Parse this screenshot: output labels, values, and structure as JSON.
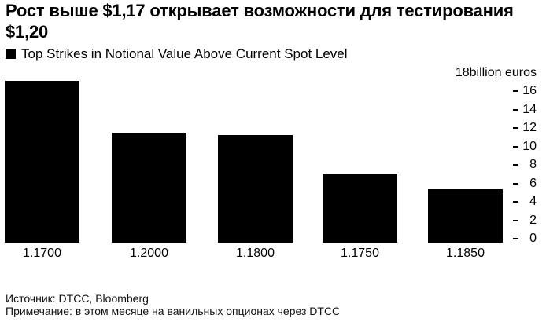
{
  "chart_data": {
    "type": "bar",
    "title": "Рост выше $1,17 открывает возможности для тестирования $1,20",
    "categories": [
      "1.1700",
      "1.2000",
      "1.1800",
      "1.1750",
      "1.1850"
    ],
    "values": [
      17.4,
      11.8,
      11.6,
      7.4,
      5.7
    ],
    "series_name": "Top Strikes in Notional Value Above Current Spot Level",
    "legend": [
      "Top Strikes in Notional Value Above Current Spot Level"
    ],
    "legend_position": "top-left",
    "axis_top_label": "18billion euros",
    "ylabel": "billion euros",
    "ylim": [
      0,
      18
    ],
    "yticks": [
      16,
      14,
      12,
      10,
      8,
      6,
      4,
      2,
      0
    ],
    "yaxis_side": "right",
    "grid": false,
    "bar_color": "#000000",
    "background_color": "#ffffff"
  },
  "footer": {
    "source": "Источник: DTCC, Bloomberg",
    "note": "Примечание: в этом месяце на ванильных опционах через DTCC"
  }
}
